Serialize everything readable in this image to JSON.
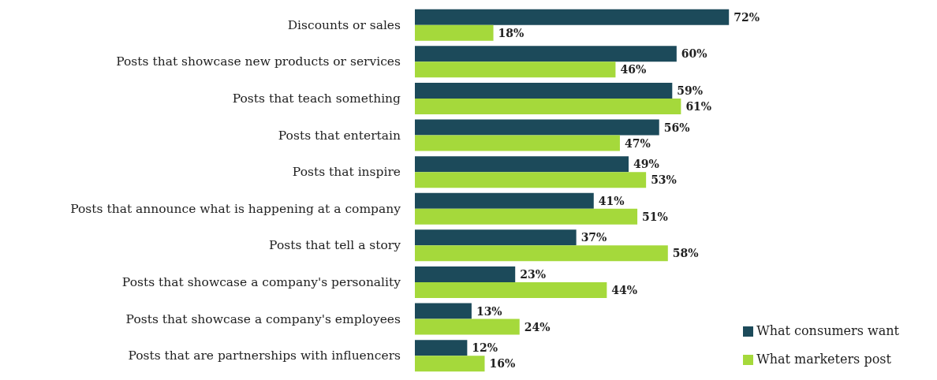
{
  "chart_data": {
    "type": "bar",
    "orientation": "horizontal",
    "categories": [
      "Discounts or sales",
      "Posts that showcase new products or services",
      "Posts that teach something",
      "Posts that entertain",
      "Posts that inspire",
      "Posts that announce what is happening at a company",
      "Posts that tell a story",
      "Posts that showcase a company's personality",
      "Posts that showcase a company's employees",
      "Posts that are partnerships with influencers"
    ],
    "series": [
      {
        "name": "What consumers want",
        "color": "#1c4a5a",
        "values": [
          72,
          60,
          59,
          56,
          49,
          41,
          37,
          23,
          13,
          12
        ],
        "value_labels": [
          "72%",
          "60%",
          "59%",
          "56%",
          "49%",
          "41%",
          "37%",
          "23%",
          "13%",
          "12%"
        ]
      },
      {
        "name": "What marketers post",
        "color": "#a5d93b",
        "values": [
          18,
          46,
          61,
          47,
          53,
          51,
          58,
          44,
          24,
          16
        ],
        "value_labels": [
          "18%",
          "46%",
          "61%",
          "47%",
          "53%",
          "51%",
          "58%",
          "44%",
          "24%",
          "16%"
        ]
      }
    ],
    "legend": "bottom right",
    "grid": false
  }
}
